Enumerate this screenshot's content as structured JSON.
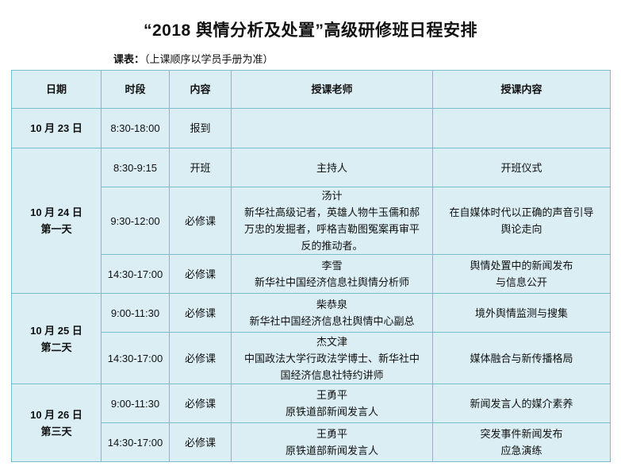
{
  "title": "“2018 舆情分析及处置”高级研修班日程安排",
  "subtitle": {
    "label": "课表：",
    "note": "（上课顺序以学员手册为准）"
  },
  "table": {
    "headers": [
      "日期",
      "时段",
      "内容",
      "授课老师",
      "授课内容"
    ],
    "day0": {
      "date": "10 月 23 日",
      "time": "8:30-18:00",
      "type": "报到",
      "teacher": "",
      "topic": ""
    },
    "day1": {
      "date": "10 月 24 日\n第一天",
      "sessions": [
        {
          "time": "8:30-9:15",
          "type": "开班",
          "teacher": "主持人",
          "topic": "开班仪式"
        },
        {
          "time": "9:30-12:00",
          "type": "必修课",
          "teacher": "汤计\n新华社高级记者，英雄人物牛玉儒和郝\n万忠的发掘者，呼格吉勒图冤案再审平\n反的推动者。",
          "topic": "在自媒体时代以正确的声音引导\n舆论走向"
        },
        {
          "time": "14:30-17:00",
          "type": "必修课",
          "teacher": "李雪\n新华社中国经济信息社舆情分析师",
          "topic": "舆情处置中的新闻发布\n与信息公开"
        }
      ]
    },
    "day2": {
      "date": "10 月 25 日\n第二天",
      "sessions": [
        {
          "time": "9:00-11:30",
          "type": "必修课",
          "teacher": "柴恭泉\n新华社中国经济信息社舆情中心副总",
          "topic": "境外舆情监测与搜集"
        },
        {
          "time": "14:30-17:00",
          "type": "必修课",
          "teacher": "杰文津\n中国政法大学行政法学博士、新华社中\n国经济信息社特约讲师",
          "topic": "媒体融合与新传播格局"
        }
      ]
    },
    "day3": {
      "date": "10 月 26 日\n第三天",
      "sessions": [
        {
          "time": "9:00-11:30",
          "type": "必修课",
          "teacher": "王勇平\n原铁道部新闻发言人",
          "topic": "新闻发言人的媒介素养"
        },
        {
          "time": "14:30-17:00",
          "type": "必修课",
          "teacher": "王勇平\n原铁道部新闻发言人",
          "topic": "突发事件新闻发布\n应急演练"
        }
      ]
    }
  },
  "colors": {
    "cell_bg": "#daeef3",
    "border": "#79bccb"
  }
}
